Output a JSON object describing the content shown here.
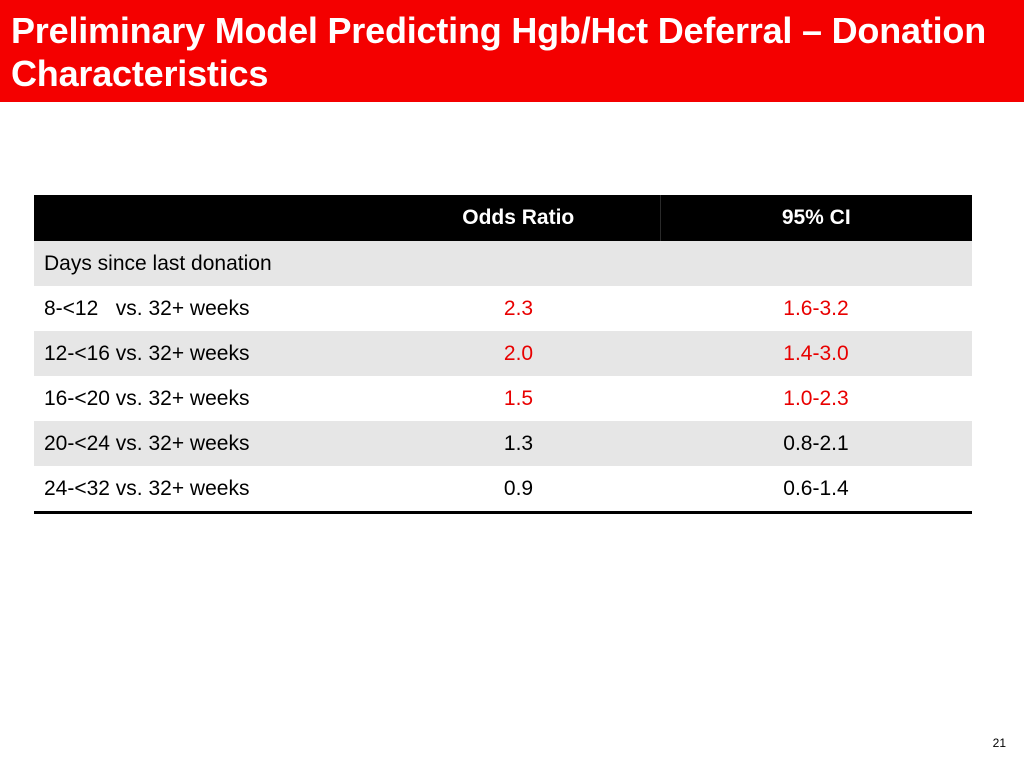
{
  "slide": {
    "title": "Preliminary Model Predicting Hgb/Hct Deferral – Donation Characteristics",
    "page_number": "21"
  },
  "colors": {
    "title_bar": "#f40000",
    "header_bg": "#000000",
    "shaded_row": "#e6e6e6",
    "significant_value": "#e80000"
  },
  "table": {
    "headers": [
      "",
      "Odds Ratio",
      "95% CI"
    ],
    "section_label": "Days since last donation",
    "rows": [
      {
        "label": "8-<12   vs. 32+ weeks",
        "odds_ratio": "2.3",
        "ci": "1.6-3.2",
        "significant": true
      },
      {
        "label": "12-<16 vs. 32+ weeks",
        "odds_ratio": "2.0",
        "ci": "1.4-3.0",
        "significant": true
      },
      {
        "label": "16-<20 vs. 32+ weeks",
        "odds_ratio": "1.5",
        "ci": "1.0-2.3",
        "significant": true
      },
      {
        "label": "20-<24 vs. 32+ weeks",
        "odds_ratio": "1.3",
        "ci": "0.8-2.1",
        "significant": false
      },
      {
        "label": "24-<32 vs. 32+ weeks",
        "odds_ratio": "0.9",
        "ci": "0.6-1.4",
        "significant": false
      }
    ]
  }
}
